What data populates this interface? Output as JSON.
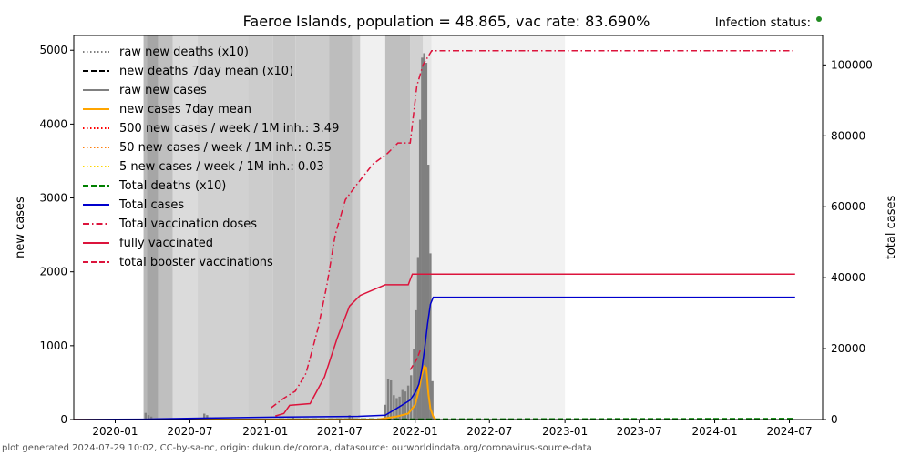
{
  "chart_data": {
    "type": "line",
    "title": "Faeroe Islands, population = 48.865, vac rate: 83.690%",
    "status_label": "Infection status:",
    "status_color": "#228b22",
    "ylabel_left": "new cases",
    "ylabel_right": "total cases",
    "x_ticks": [
      "2020-01",
      "2020-07",
      "2021-01",
      "2021-07",
      "2022-01",
      "2022-07",
      "2023-01",
      "2023-07",
      "2024-01",
      "2024-07"
    ],
    "y_ticks_left": [
      0,
      1000,
      2000,
      3000,
      4000,
      5000
    ],
    "y_ticks_right": [
      0,
      20000,
      40000,
      60000,
      80000,
      100000
    ],
    "ylim_left": [
      0,
      5200
    ],
    "ylim_right": [
      0,
      108300
    ],
    "xlim": [
      "2019-09-22",
      "2024-09-20"
    ],
    "grid": false,
    "legend_position": "upper-left",
    "legend": [
      {
        "label": "raw new deaths (x10)",
        "color": "#808080",
        "dash": "dotted"
      },
      {
        "label": "new deaths 7day mean (x10)",
        "color": "#000000",
        "dash": "dashed"
      },
      {
        "label": "raw new cases",
        "color": "#808080",
        "dash": "solid"
      },
      {
        "label": "new cases 7day mean",
        "color": "#ffa500",
        "dash": "solid"
      },
      {
        "label": "500 new cases / week / 1M inh.: 3.49",
        "color": "#ff0000",
        "dash": "dotted"
      },
      {
        "label": "50 new cases / week / 1M inh.: 0.35",
        "color": "#ff7f0e",
        "dash": "dotted"
      },
      {
        "label": "5 new cases / week / 1M inh.: 0.03",
        "color": "#ffd700",
        "dash": "dotted"
      },
      {
        "label": "Total deaths (x10)",
        "color": "#008000",
        "dash": "dashed"
      },
      {
        "label": "Total cases",
        "color": "#0000cd",
        "dash": "solid"
      },
      {
        "label": "Total vaccination doses",
        "color": "#dc143c",
        "dash": "dashdot"
      },
      {
        "label": "fully vaccinated",
        "color": "#dc143c",
        "dash": "solid"
      },
      {
        "label": "total booster vaccinations",
        "color": "#dc143c",
        "dash": "dashed"
      }
    ],
    "background_periods": [
      {
        "start": "2020-03-10",
        "end": "2020-03-18",
        "shade": 0.28
      },
      {
        "start": "2020-03-18",
        "end": "2020-04-15",
        "shade": 0.35
      },
      {
        "start": "2020-04-15",
        "end": "2020-05-20",
        "shade": 0.25
      },
      {
        "start": "2020-05-20",
        "end": "2020-07-20",
        "shade": 0.14
      },
      {
        "start": "2020-07-20",
        "end": "2020-11-20",
        "shade": 0.18
      },
      {
        "start": "2020-11-20",
        "end": "2021-01-20",
        "shade": 0.2
      },
      {
        "start": "2021-01-20",
        "end": "2021-03-15",
        "shade": 0.22
      },
      {
        "start": "2021-03-15",
        "end": "2021-06-05",
        "shade": 0.2
      },
      {
        "start": "2021-06-05",
        "end": "2021-08-01",
        "shade": 0.26
      },
      {
        "start": "2021-08-01",
        "end": "2021-08-20",
        "shade": 0.2
      },
      {
        "start": "2021-08-20",
        "end": "2021-10-20",
        "shade": 0.06
      },
      {
        "start": "2021-10-20",
        "end": "2021-12-20",
        "shade": 0.25
      },
      {
        "start": "2021-12-20",
        "end": "2022-01-20",
        "shade": 0.18
      },
      {
        "start": "2022-01-20",
        "end": "2022-02-10",
        "shade": 0.1
      },
      {
        "start": "2022-02-10",
        "end": "2023-01-01",
        "shade": 0.05
      }
    ],
    "raw_new_cases": [
      {
        "x": "2020-03-15",
        "y": 90
      },
      {
        "x": "2020-03-22",
        "y": 60
      },
      {
        "x": "2020-03-29",
        "y": 40
      },
      {
        "x": "2020-08-05",
        "y": 80
      },
      {
        "x": "2020-08-12",
        "y": 60
      },
      {
        "x": "2020-08-19",
        "y": 30
      },
      {
        "x": "2021-03-10",
        "y": 30
      },
      {
        "x": "2021-07-25",
        "y": 60
      },
      {
        "x": "2021-08-01",
        "y": 40
      },
      {
        "x": "2021-10-20",
        "y": 200
      },
      {
        "x": "2021-10-27",
        "y": 550
      },
      {
        "x": "2021-11-03",
        "y": 530
      },
      {
        "x": "2021-11-10",
        "y": 330
      },
      {
        "x": "2021-11-17",
        "y": 290
      },
      {
        "x": "2021-11-24",
        "y": 310
      },
      {
        "x": "2021-12-01",
        "y": 400
      },
      {
        "x": "2021-12-08",
        "y": 380
      },
      {
        "x": "2021-12-15",
        "y": 460
      },
      {
        "x": "2021-12-22",
        "y": 600
      },
      {
        "x": "2021-12-29",
        "y": 950
      },
      {
        "x": "2022-01-03",
        "y": 1480
      },
      {
        "x": "2022-01-08",
        "y": 2200
      },
      {
        "x": "2022-01-13",
        "y": 4060
      },
      {
        "x": "2022-01-18",
        "y": 4900
      },
      {
        "x": "2022-01-23",
        "y": 4960
      },
      {
        "x": "2022-01-28",
        "y": 4830
      },
      {
        "x": "2022-02-02",
        "y": 3450
      },
      {
        "x": "2022-02-07",
        "y": 2250
      },
      {
        "x": "2022-02-12",
        "y": 520
      }
    ],
    "new_cases_7day_mean": [
      {
        "x": "2019-09-22",
        "y": 0
      },
      {
        "x": "2021-10-01",
        "y": 0
      },
      {
        "x": "2021-11-15",
        "y": 40
      },
      {
        "x": "2021-12-15",
        "y": 80
      },
      {
        "x": "2022-01-01",
        "y": 200
      },
      {
        "x": "2022-01-10",
        "y": 400
      },
      {
        "x": "2022-01-17",
        "y": 600
      },
      {
        "x": "2022-01-23",
        "y": 720
      },
      {
        "x": "2022-01-28",
        "y": 700
      },
      {
        "x": "2022-02-02",
        "y": 350
      },
      {
        "x": "2022-02-07",
        "y": 150
      },
      {
        "x": "2022-02-14",
        "y": 40
      },
      {
        "x": "2022-02-20",
        "y": 0
      }
    ],
    "total_deaths_x10": [
      {
        "x": "2019-09-22",
        "y": 0
      },
      {
        "x": "2024-07-15",
        "y": 280
      }
    ],
    "total_cases": [
      {
        "x": "2019-09-22",
        "y": 0
      },
      {
        "x": "2020-03-15",
        "y": 100
      },
      {
        "x": "2020-04-15",
        "y": 190
      },
      {
        "x": "2020-08-15",
        "y": 400
      },
      {
        "x": "2021-01-20",
        "y": 660
      },
      {
        "x": "2021-08-15",
        "y": 900
      },
      {
        "x": "2021-10-20",
        "y": 1200
      },
      {
        "x": "2021-11-15",
        "y": 3000
      },
      {
        "x": "2021-12-20",
        "y": 5500
      },
      {
        "x": "2022-01-03",
        "y": 8000
      },
      {
        "x": "2022-01-10",
        "y": 10000
      },
      {
        "x": "2022-01-17",
        "y": 14000
      },
      {
        "x": "2022-01-24",
        "y": 20000
      },
      {
        "x": "2022-01-31",
        "y": 27000
      },
      {
        "x": "2022-02-07",
        "y": 32500
      },
      {
        "x": "2022-02-14",
        "y": 34500
      },
      {
        "x": "2024-07-15",
        "y": 34500
      }
    ],
    "total_vaccination_doses": [
      {
        "x": "2021-01-15",
        "y": 3300
      },
      {
        "x": "2021-02-15",
        "y": 6000
      },
      {
        "x": "2021-03-15",
        "y": 8000
      },
      {
        "x": "2021-04-10",
        "y": 13000
      },
      {
        "x": "2021-05-10",
        "y": 26000
      },
      {
        "x": "2021-05-31",
        "y": 38000
      },
      {
        "x": "2021-06-20",
        "y": 52000
      },
      {
        "x": "2021-07-15",
        "y": 62000
      },
      {
        "x": "2021-08-10",
        "y": 66000
      },
      {
        "x": "2021-09-20",
        "y": 72000
      },
      {
        "x": "2021-10-25",
        "y": 75000
      },
      {
        "x": "2021-11-20",
        "y": 78000
      },
      {
        "x": "2021-12-20",
        "y": 78000
      },
      {
        "x": "2022-01-05",
        "y": 94000
      },
      {
        "x": "2022-01-20",
        "y": 100000
      },
      {
        "x": "2022-02-10",
        "y": 104000
      },
      {
        "x": "2024-07-15",
        "y": 104000
      }
    ],
    "fully_vaccinated": [
      {
        "x": "2021-01-25",
        "y": 1000
      },
      {
        "x": "2021-02-15",
        "y": 1700
      },
      {
        "x": "2021-03-01",
        "y": 4000
      },
      {
        "x": "2021-04-20",
        "y": 4500
      },
      {
        "x": "2021-05-25",
        "y": 12000
      },
      {
        "x": "2021-06-25",
        "y": 23000
      },
      {
        "x": "2021-07-25",
        "y": 32000
      },
      {
        "x": "2021-08-20",
        "y": 35000
      },
      {
        "x": "2021-10-20",
        "y": 38000
      },
      {
        "x": "2021-12-15",
        "y": 38000
      },
      {
        "x": "2021-12-25",
        "y": 41000
      },
      {
        "x": "2024-07-15",
        "y": 41000
      }
    ],
    "total_booster_vaccinations": [
      {
        "x": "2021-12-20",
        "y": 14000
      },
      {
        "x": "2022-01-05",
        "y": 17000
      },
      {
        "x": "2022-01-15",
        "y": 20000
      }
    ]
  },
  "footer": "plot generated 2024-07-29 10:02, CC-by-sa-nc, origin: dukun.de/corona, datasource: ourworldindata.org/coronavirus-source-data"
}
